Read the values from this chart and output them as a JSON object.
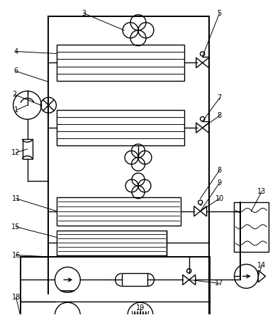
{
  "fig_width": 3.88,
  "fig_height": 4.44,
  "dpi": 100,
  "bg_color": "#ffffff",
  "line_color": "#000000",
  "lw": 1.0,
  "lw_pipe": 1.4,
  "label_fontsize": 7.0
}
